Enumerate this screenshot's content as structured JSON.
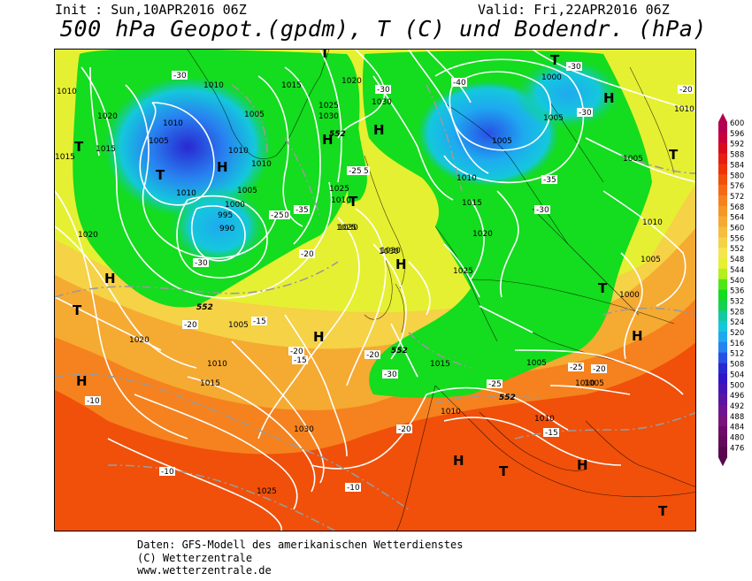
{
  "header": {
    "init": "Init : Sun,10APR2016 06Z",
    "valid": "Valid: Fri,22APR2016 06Z",
    "title": "500 hPa Geopot.(gpdm), T (C) und Bodendr. (hPa)"
  },
  "legend": {
    "values": [
      "600",
      "596",
      "592",
      "588",
      "584",
      "580",
      "576",
      "572",
      "568",
      "564",
      "560",
      "556",
      "552",
      "548",
      "544",
      "540",
      "536",
      "532",
      "528",
      "524",
      "520",
      "516",
      "512",
      "508",
      "504",
      "500",
      "496",
      "492",
      "488",
      "484",
      "480",
      "476"
    ],
    "colors": [
      "#b40050",
      "#c8003c",
      "#dc0a1e",
      "#e61e14",
      "#f0320a",
      "#f0500a",
      "#f56914",
      "#f5821e",
      "#f59628",
      "#f5aa32",
      "#f5be3c",
      "#f5d246",
      "#f5e650",
      "#e6f032",
      "#b4f01e",
      "#50e614",
      "#14dc1e",
      "#14d250",
      "#14c8a0",
      "#14c8dc",
      "#1eaaf0",
      "#2882f0",
      "#2850e6",
      "#2828d2",
      "#3214c8",
      "#4614b4",
      "#5a14a0",
      "#6e1491",
      "#78147d",
      "#6e0a69",
      "#640a5a",
      "#5a0550"
    ]
  },
  "map": {
    "pressure_labels": [
      "1010",
      "1020",
      "1015",
      "1005",
      "1010",
      "1015",
      "1010",
      "1005",
      "1010",
      "1010",
      "995",
      "990",
      "1010",
      "1005",
      "1000",
      "1015",
      "1025",
      "1030",
      "1020",
      "1030",
      "1025",
      "1030",
      "1030",
      "1000",
      "1005",
      "1005",
      "1010",
      "1015",
      "1020",
      "1025",
      "1010",
      "1020",
      "1010",
      "1005",
      "1000",
      "1030",
      "1010",
      "1020",
      "1005",
      "1015",
      "1010",
      "1015",
      "1025",
      "1005",
      "1010",
      "1010",
      "1010",
      "1025",
      "1030",
      "1005",
      "1005"
    ],
    "temp_labels": [
      "-30",
      "-35",
      "-20",
      "-40",
      "-30",
      "-30",
      "-25",
      "-25",
      "-20",
      "-30",
      "-30",
      "-35",
      "-30",
      "-20",
      "-20",
      "-15",
      "-15",
      "-25",
      "-20",
      "-25",
      "-30",
      "-20",
      "-25",
      "-20",
      "-15",
      "-10",
      "-10",
      "-10",
      "-20"
    ],
    "geopot_labels": [
      "552",
      "552",
      "552",
      "552"
    ],
    "high_label": "H",
    "low_label": "T"
  },
  "credits": {
    "line1": "Daten: GFS-Modell des amerikanischen Wetterdienstes",
    "line2": "(C) Wetterzentrale",
    "line3": "www.wetterzentrale.de"
  }
}
